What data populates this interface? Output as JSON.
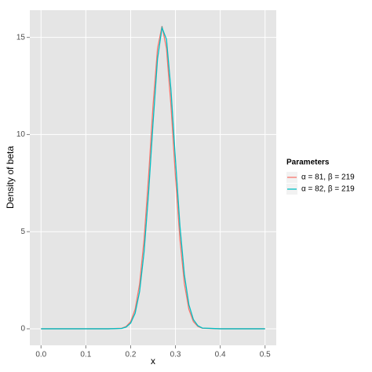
{
  "chart_data": {
    "type": "line",
    "x_label": "x",
    "y_label": "Density of beta",
    "legend_title": "Parameters",
    "x": [
      0,
      0.05,
      0.1,
      0.15,
      0.18,
      0.19,
      0.2,
      0.21,
      0.22,
      0.23,
      0.24,
      0.25,
      0.26,
      0.27,
      0.28,
      0.29,
      0.3,
      0.31,
      0.32,
      0.33,
      0.34,
      0.35,
      0.36,
      0.4,
      0.45,
      0.5
    ],
    "series": [
      {
        "name": "α = 81, β = 219",
        "color": "#F8766D",
        "values": [
          0,
          0,
          0,
          0,
          0.03,
          0.12,
          0.37,
          1.0,
          2.31,
          4.6,
          7.84,
          11.49,
          14.43,
          15.58,
          14.43,
          11.49,
          7.84,
          4.6,
          2.31,
          1.0,
          0.37,
          0.12,
          0.03,
          0,
          0,
          0
        ]
      },
      {
        "name": "α = 82, β = 219",
        "color": "#00BFC4",
        "values": [
          0,
          0,
          0,
          0,
          0.02,
          0.09,
          0.29,
          0.8,
          1.92,
          3.96,
          7.0,
          10.6,
          13.9,
          15.5,
          14.9,
          12.3,
          8.7,
          5.3,
          2.77,
          1.24,
          0.48,
          0.16,
          0.04,
          0,
          0,
          0
        ]
      }
    ],
    "xlim": [
      -0.025,
      0.525
    ],
    "ylim": [
      -0.85,
      16.4
    ],
    "xticks": [
      {
        "value": 0,
        "label": "0.0"
      },
      {
        "value": 0.1,
        "label": "0.1"
      },
      {
        "value": 0.2,
        "label": "0.2"
      },
      {
        "value": 0.3,
        "label": "0.3"
      },
      {
        "value": 0.4,
        "label": "0.4"
      },
      {
        "value": 0.5,
        "label": "0.5"
      }
    ],
    "yticks": [
      0,
      5,
      10,
      15
    ],
    "grid": true,
    "legend": "right"
  }
}
